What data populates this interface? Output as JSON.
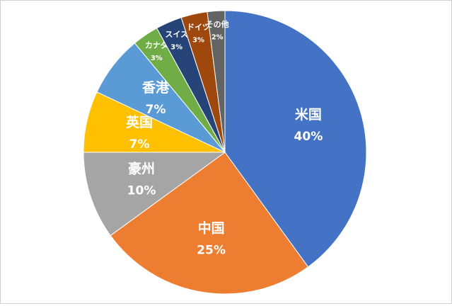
{
  "chart_data": {
    "type": "pie",
    "categories": [
      "米国",
      "中国",
      "豪州",
      "英国",
      "香港",
      "カナダ",
      "スイス",
      "ドイツ",
      "その他"
    ],
    "values": [
      40,
      25,
      10,
      7,
      7,
      3,
      3,
      3,
      2
    ],
    "value_labels": [
      "40%",
      "25%",
      "10%",
      "7%",
      "7%",
      "3%",
      "3%",
      "3%",
      "2%"
    ],
    "colors": [
      "#4472c4",
      "#ed7d31",
      "#a5a5a5",
      "#ffc000",
      "#5b9bd5",
      "#70ad47",
      "#264478",
      "#9e480e",
      "#636363"
    ]
  }
}
